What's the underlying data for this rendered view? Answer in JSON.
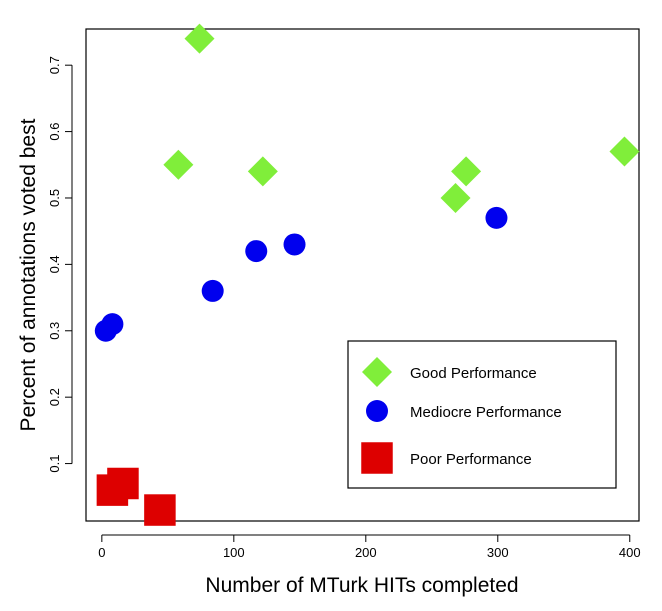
{
  "chart_data": {
    "type": "scatter",
    "title": "",
    "xlabel": "Number of MTurk HITs completed",
    "ylabel": "Percent of annotations voted best",
    "xlim": [
      -12,
      407
    ],
    "ylim": [
      0.0135,
      0.7545
    ],
    "x_ticks": [
      0,
      100,
      200,
      300,
      400
    ],
    "y_ticks": [
      0.1,
      0.2,
      0.3,
      0.4,
      0.5,
      0.6,
      0.7
    ],
    "grid": false,
    "legend_position": "bottom-right",
    "series": [
      {
        "name": "Good Performance",
        "marker": "diamond",
        "color": "#80ee3a",
        "points": [
          {
            "x": 74,
            "y": 0.74
          },
          {
            "x": 58,
            "y": 0.55
          },
          {
            "x": 122,
            "y": 0.54
          },
          {
            "x": 276,
            "y": 0.54
          },
          {
            "x": 268,
            "y": 0.5
          },
          {
            "x": 396,
            "y": 0.57
          }
        ]
      },
      {
        "name": "Mediocre Performance",
        "marker": "circle",
        "color": "#0000ee",
        "points": [
          {
            "x": 3,
            "y": 0.3
          },
          {
            "x": 8,
            "y": 0.31
          },
          {
            "x": 84,
            "y": 0.36
          },
          {
            "x": 117,
            "y": 0.42
          },
          {
            "x": 146,
            "y": 0.43
          },
          {
            "x": 299,
            "y": 0.47
          }
        ]
      },
      {
        "name": "Poor Performance",
        "marker": "square",
        "color": "#dd0000",
        "points": [
          {
            "x": 8,
            "y": 0.06
          },
          {
            "x": 16,
            "y": 0.07
          },
          {
            "x": 44,
            "y": 0.03
          }
        ]
      }
    ]
  }
}
